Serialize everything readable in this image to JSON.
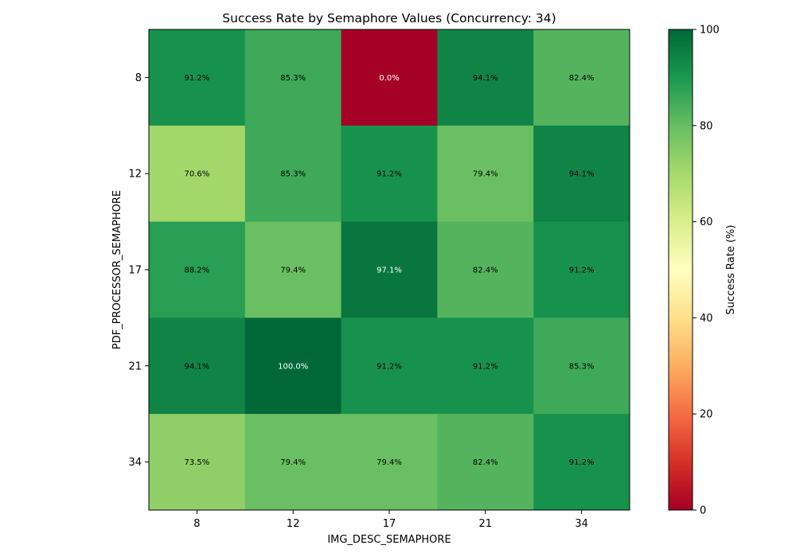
{
  "chart_data": {
    "type": "heatmap",
    "title": "Success Rate by Semaphore Values (Concurrency: 34)",
    "xlabel": "IMG_DESC_SEMAPHORE",
    "ylabel": "PDF_PROCESSOR_SEMAPHORE",
    "x_categories": [
      "8",
      "12",
      "17",
      "21",
      "34"
    ],
    "y_categories": [
      "8",
      "12",
      "17",
      "21",
      "34"
    ],
    "values": [
      [
        91.2,
        85.3,
        0.0,
        94.1,
        82.4
      ],
      [
        70.6,
        85.3,
        91.2,
        79.4,
        94.1
      ],
      [
        88.2,
        79.4,
        97.1,
        82.4,
        91.2
      ],
      [
        94.1,
        100.0,
        91.2,
        91.2,
        85.3
      ],
      [
        73.5,
        79.4,
        79.4,
        82.4,
        91.2
      ]
    ],
    "cell_labels": [
      [
        "91.2%",
        "85.3%",
        "0.0%",
        "94.1%",
        "82.4%"
      ],
      [
        "70.6%",
        "85.3%",
        "91.2%",
        "79.4%",
        "94.1%"
      ],
      [
        "88.2%",
        "79.4%",
        "97.1%",
        "82.4%",
        "91.2%"
      ],
      [
        "94.1%",
        "100.0%",
        "91.2%",
        "91.2%",
        "85.3%"
      ],
      [
        "73.5%",
        "79.4%",
        "79.4%",
        "82.4%",
        "91.2%"
      ]
    ],
    "colormap": "RdYlGn",
    "vmin": 0,
    "vmax": 100,
    "colorbar": {
      "label": "Success Rate (%)",
      "ticks": [
        "0",
        "20",
        "40",
        "60",
        "80",
        "100"
      ]
    }
  }
}
